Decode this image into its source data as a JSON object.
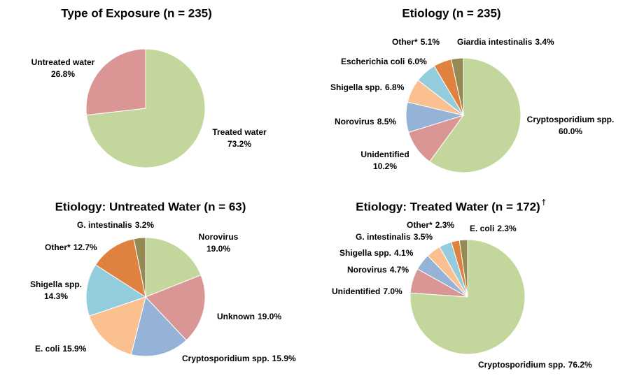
{
  "chart_data": [
    {
      "type": "pie",
      "title": "Type of Exposure (n = 235)",
      "categories": [
        "Treated water",
        "Untreated water"
      ],
      "values": [
        73.2,
        26.8
      ],
      "value_labels": [
        "73.2%",
        "26.8%"
      ],
      "colors": [
        "#c3d69b",
        "#d99694"
      ]
    },
    {
      "type": "pie",
      "title": "Etiology (n = 235)",
      "categories": [
        "Cryptosporidium spp.",
        "Unidentified",
        "Norovirus",
        "Shigella spp.",
        "Escherichia coli",
        "Other*",
        "Giardia intestinalis"
      ],
      "values": [
        60.0,
        10.2,
        8.5,
        6.8,
        6.0,
        5.1,
        3.4
      ],
      "value_labels": [
        "60.0%",
        "10.2%",
        "8.5%",
        "6.8%",
        "6.0%",
        "5.1%",
        "3.4%"
      ],
      "colors": [
        "#c3d69b",
        "#d99694",
        "#95b3d7",
        "#fac090",
        "#93cddd",
        "#e0823f",
        "#948a54"
      ]
    },
    {
      "type": "pie",
      "title": "Etiology: Untreated Water (n = 63)",
      "categories": [
        "Norovirus",
        "Unknown",
        "Cryptosporidium spp.",
        "E. coli",
        "Shigella spp.",
        "Other*",
        "G. intestinalis"
      ],
      "values": [
        19.0,
        19.0,
        15.9,
        15.9,
        14.3,
        12.7,
        3.2
      ],
      "value_labels": [
        "19.0%",
        "19.0%",
        "15.9%",
        "15.9%",
        "14.3%",
        "12.7%",
        "3.2%"
      ],
      "colors": [
        "#c3d69b",
        "#d99694",
        "#95b3d7",
        "#fac090",
        "#93cddd",
        "#e0823f",
        "#948a54"
      ]
    },
    {
      "type": "pie",
      "title": "Etiology: Treated Water (n = 172)",
      "title_note": "†",
      "categories": [
        "Cryptosporidium spp.",
        "Unidentified",
        "Norovirus",
        "Shigella spp.",
        "G. intestinalis",
        "Other*",
        "E. coli"
      ],
      "values": [
        76.2,
        7.0,
        4.7,
        4.1,
        3.5,
        2.3,
        2.3
      ],
      "value_labels": [
        "76.2%",
        "7.0%",
        "4.7%",
        "4.1%",
        "3.5%",
        "2.3%",
        "2.3%"
      ],
      "colors": [
        "#c3d69b",
        "#d99694",
        "#95b3d7",
        "#fac090",
        "#93cddd",
        "#e0823f",
        "#948a54"
      ]
    }
  ]
}
